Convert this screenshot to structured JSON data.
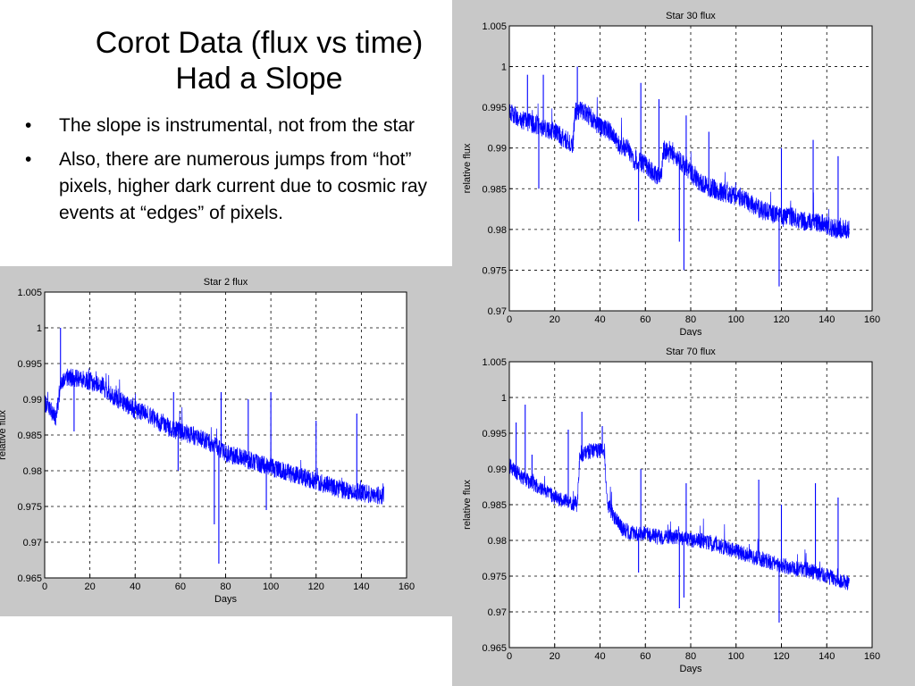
{
  "slide": {
    "title_line1": "Corot Data (flux vs time)",
    "title_line2": "Had a Slope",
    "bullets": [
      "The slope is instrumental, not from the star",
      "Also, there are numerous jumps from “hot” pixels, higher dark current due to cosmic ray events at “edges” of pixels."
    ],
    "bullet_glyph": "•"
  },
  "chart_data": [
    {
      "type": "line",
      "title": "Star 30 flux",
      "xlabel": "Days",
      "ylabel": "relative flux",
      "xlim": [
        0,
        160
      ],
      "ylim": [
        0.97,
        1.005
      ],
      "xticks": [
        0,
        20,
        40,
        60,
        80,
        100,
        120,
        140,
        160
      ],
      "yticks": [
        0.97,
        0.975,
        0.98,
        0.985,
        0.99,
        0.995,
        1,
        1.005
      ],
      "ytick_labels": [
        "0.97",
        "0.975",
        "0.98",
        "0.985",
        "0.99",
        "0.995",
        "1",
        "1.005"
      ],
      "grid": true,
      "line_color": "#0000ff",
      "series": [
        {
          "values": [
            [
              0,
              0.9945
            ],
            [
              5,
              0.9935
            ],
            [
              10,
              0.993
            ],
            [
              15,
              0.9925
            ],
            [
              20,
              0.992
            ],
            [
              25,
              0.991
            ],
            [
              28,
              0.9905
            ],
            [
              29,
              0.9945
            ],
            [
              32,
              0.9945
            ],
            [
              35,
              0.994
            ],
            [
              40,
              0.9925
            ],
            [
              45,
              0.992
            ],
            [
              48,
              0.9905
            ],
            [
              52,
              0.99
            ],
            [
              55,
              0.9885
            ],
            [
              60,
              0.988
            ],
            [
              65,
              0.9865
            ],
            [
              67,
              0.9865
            ],
            [
              68,
              0.9895
            ],
            [
              70,
              0.9895
            ],
            [
              75,
              0.9885
            ],
            [
              80,
              0.987
            ],
            [
              85,
              0.9855
            ],
            [
              90,
              0.985
            ],
            [
              95,
              0.9845
            ],
            [
              100,
              0.984
            ],
            [
              105,
              0.9835
            ],
            [
              110,
              0.9825
            ],
            [
              115,
              0.982
            ],
            [
              120,
              0.9815
            ],
            [
              125,
              0.9815
            ],
            [
              130,
              0.981
            ],
            [
              135,
              0.981
            ],
            [
              140,
              0.9805
            ],
            [
              145,
              0.98
            ],
            [
              150,
              0.98
            ]
          ],
          "spikes": [
            [
              8,
              0.999
            ],
            [
              13,
              0.985
            ],
            [
              15,
              0.999
            ],
            [
              30,
              1.0
            ],
            [
              57,
              0.981
            ],
            [
              58,
              0.998
            ],
            [
              66,
              0.996
            ],
            [
              75,
              0.9785
            ],
            [
              77,
              0.975
            ],
            [
              78,
              0.994
            ],
            [
              88,
              0.992
            ],
            [
              119,
              0.973
            ],
            [
              120,
              0.99
            ],
            [
              134,
              0.991
            ],
            [
              145,
              0.989
            ]
          ],
          "noise": 0.0012
        }
      ]
    },
    {
      "type": "line",
      "title": "Star 2 flux",
      "xlabel": "Days",
      "ylabel": "relative flux",
      "xlim": [
        0,
        160
      ],
      "ylim": [
        0.965,
        1.005
      ],
      "xticks": [
        0,
        20,
        40,
        60,
        80,
        100,
        120,
        140,
        160
      ],
      "yticks": [
        0.965,
        0.97,
        0.975,
        0.98,
        0.985,
        0.99,
        0.995,
        1,
        1.005
      ],
      "ytick_labels": [
        "0.965",
        "0.97",
        "0.975",
        "0.98",
        "0.985",
        "0.99",
        "0.995",
        "1",
        "1.005"
      ],
      "grid": true,
      "line_color": "#0000ff",
      "series": [
        {
          "values": [
            [
              0,
              0.9895
            ],
            [
              5,
              0.9875
            ],
            [
              7,
              0.992
            ],
            [
              10,
              0.993
            ],
            [
              15,
              0.993
            ],
            [
              20,
              0.9925
            ],
            [
              25,
              0.992
            ],
            [
              30,
              0.9905
            ],
            [
              35,
              0.9895
            ],
            [
              40,
              0.9885
            ],
            [
              45,
              0.988
            ],
            [
              50,
              0.987
            ],
            [
              55,
              0.986
            ],
            [
              60,
              0.9855
            ],
            [
              65,
              0.985
            ],
            [
              70,
              0.9845
            ],
            [
              75,
              0.9835
            ],
            [
              80,
              0.9825
            ],
            [
              85,
              0.982
            ],
            [
              90,
              0.9815
            ],
            [
              95,
              0.981
            ],
            [
              100,
              0.9805
            ],
            [
              105,
              0.98
            ],
            [
              110,
              0.9795
            ],
            [
              115,
              0.979
            ],
            [
              120,
              0.9785
            ],
            [
              125,
              0.978
            ],
            [
              130,
              0.9775
            ],
            [
              135,
              0.977
            ],
            [
              140,
              0.977
            ],
            [
              145,
              0.9765
            ],
            [
              150,
              0.9765
            ]
          ],
          "spikes": [
            [
              7,
              1.0
            ],
            [
              13,
              0.9855
            ],
            [
              57,
              0.991
            ],
            [
              59,
              0.98
            ],
            [
              75,
              0.9725
            ],
            [
              77,
              0.967
            ],
            [
              78,
              0.991
            ],
            [
              90,
              0.99
            ],
            [
              98,
              0.9745
            ],
            [
              100,
              0.991
            ],
            [
              120,
              0.987
            ],
            [
              138,
              0.988
            ]
          ],
          "noise": 0.0013
        }
      ]
    },
    {
      "type": "line",
      "title": "Star 70 flux",
      "xlabel": "Days",
      "ylabel": "relative flux",
      "xlim": [
        0,
        160
      ],
      "ylim": [
        0.965,
        1.005
      ],
      "xticks": [
        0,
        20,
        40,
        60,
        80,
        100,
        120,
        140,
        160
      ],
      "yticks": [
        0.965,
        0.97,
        0.975,
        0.98,
        0.985,
        0.99,
        0.995,
        1,
        1.005
      ],
      "ytick_labels": [
        "0.965",
        "0.97",
        "0.975",
        "0.98",
        "0.985",
        "0.99",
        "0.995",
        "1",
        "1.005"
      ],
      "grid": true,
      "line_color": "#0000ff",
      "series": [
        {
          "values": [
            [
              0,
              0.9905
            ],
            [
              5,
              0.989
            ],
            [
              10,
              0.988
            ],
            [
              15,
              0.987
            ],
            [
              20,
              0.986
            ],
            [
              25,
              0.9855
            ],
            [
              30,
              0.985
            ],
            [
              31,
              0.9915
            ],
            [
              35,
              0.9925
            ],
            [
              40,
              0.9925
            ],
            [
              42,
              0.9925
            ],
            [
              43,
              0.9855
            ],
            [
              45,
              0.984
            ],
            [
              48,
              0.9825
            ],
            [
              50,
              0.9815
            ],
            [
              55,
              0.981
            ],
            [
              60,
              0.981
            ],
            [
              65,
              0.9805
            ],
            [
              70,
              0.9805
            ],
            [
              75,
              0.9805
            ],
            [
              80,
              0.98
            ],
            [
              85,
              0.98
            ],
            [
              90,
              0.9795
            ],
            [
              95,
              0.979
            ],
            [
              100,
              0.9785
            ],
            [
              105,
              0.978
            ],
            [
              110,
              0.9775
            ],
            [
              115,
              0.977
            ],
            [
              120,
              0.9765
            ],
            [
              125,
              0.976
            ],
            [
              130,
              0.976
            ],
            [
              135,
              0.9755
            ],
            [
              140,
              0.975
            ],
            [
              145,
              0.9745
            ],
            [
              150,
              0.974
            ]
          ],
          "spikes": [
            [
              3,
              0.9965
            ],
            [
              7,
              0.999
            ],
            [
              10,
              0.992
            ],
            [
              26,
              0.9955
            ],
            [
              32,
              0.998
            ],
            [
              41,
              0.996
            ],
            [
              57,
              0.9755
            ],
            [
              58,
              0.99
            ],
            [
              75,
              0.9705
            ],
            [
              77,
              0.972
            ],
            [
              78,
              0.988
            ],
            [
              110,
              0.9885
            ],
            [
              119,
              0.9685
            ],
            [
              120,
              0.985
            ],
            [
              135,
              0.988
            ],
            [
              145,
              0.986
            ]
          ],
          "noise": 0.0011
        }
      ]
    }
  ]
}
